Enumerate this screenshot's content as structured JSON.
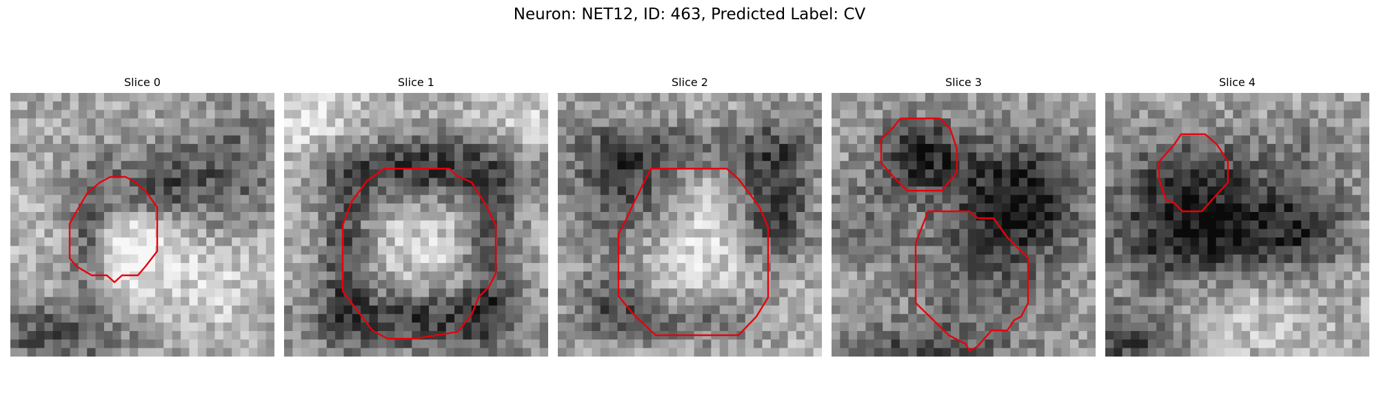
{
  "figure": {
    "title": "Neuron: NET12, ID: 463, Predicted Label: CV"
  },
  "outline_color": "#e8000b",
  "panels": [
    {
      "title": "Slice 0"
    },
    {
      "title": "Slice 1"
    },
    {
      "title": "Slice 2"
    },
    {
      "title": "Slice 3"
    },
    {
      "title": "Slice 4"
    }
  ]
}
